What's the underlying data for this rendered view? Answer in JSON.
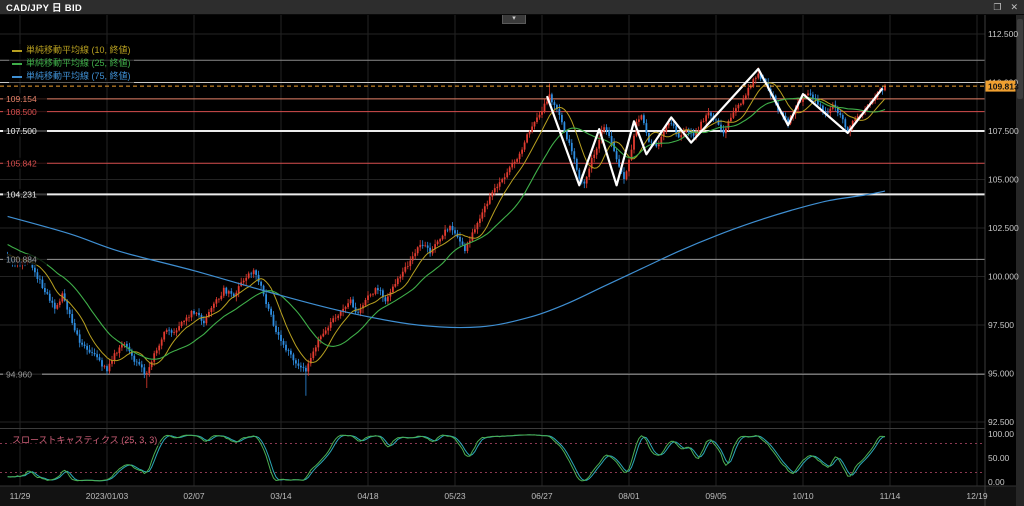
{
  "window": {
    "title": "CAD/JPY 日 BID",
    "restore_icon": "❐",
    "close_icon": "✕",
    "collapse_button": "▾"
  },
  "legend": {
    "items": [
      {
        "label": "単純移動平均線 (10, 終値)",
        "color": "#b8a020"
      },
      {
        "label": "単純移動平均線 (25, 終値)",
        "color": "#3fae49"
      },
      {
        "label": "単純移動平均線 (75, 終値)",
        "color": "#3f8fd2"
      }
    ]
  },
  "stochastic": {
    "label": "スローストキャスティクス (25, 3, 3)",
    "axis": [
      "100.00",
      "50.00",
      "0.00"
    ],
    "overbought": 80,
    "oversold": 20,
    "k_color": "#4caf50",
    "d_color": "#2aa8b8",
    "band_color": "#b84a6a"
  },
  "price_axis": {
    "labels": [
      "112.500",
      "110.000",
      "107.500",
      "105.000",
      "102.500",
      "100.000",
      "97.500",
      "95.000",
      "92.500"
    ],
    "current": {
      "value": "109.813",
      "price": 109.813,
      "bg": "#f0a030"
    }
  },
  "time_axis": {
    "labels": [
      "11/29",
      "2023/01/03",
      "02/07",
      "03/14",
      "04/18",
      "05/23",
      "06/27",
      "08/01",
      "09/05",
      "10/10",
      "11/14",
      "12/19"
    ]
  },
  "levels": [
    {
      "price": 111.15,
      "label": "",
      "color": "#8a8a8a",
      "width": 1
    },
    {
      "price": 110.0,
      "label": "",
      "color": "#c8c8c8",
      "width": 1
    },
    {
      "price": 109.154,
      "label": "109.154",
      "color": "#e8836a",
      "width": 1
    },
    {
      "price": 108.5,
      "label": "108.500",
      "color": "#d84f4f",
      "width": 1
    },
    {
      "price": 107.5,
      "label": "107.500",
      "color": "#ececec",
      "width": 2
    },
    {
      "price": 105.842,
      "label": "105.842",
      "color": "#d84f4f",
      "width": 1
    },
    {
      "price": 104.231,
      "label": "104.231",
      "color": "#ececec",
      "width": 2
    },
    {
      "price": 100.884,
      "label": "100.884",
      "color": "#9a9a9a",
      "width": 1
    },
    {
      "price": 94.96,
      "label": "94.960",
      "color": "#9a9a9a",
      "width": 1
    }
  ],
  "chart_data": {
    "type": "candlestick",
    "symbol": "CAD/JPY",
    "timeframe": "daily",
    "side": "BID",
    "ylim": [
      92.5,
      112.5
    ],
    "x_range_days": 385,
    "last_day": 348,
    "last_close": 109.813,
    "up_color": "#e13b30",
    "down_color": "#2e8de0",
    "prehistory_anchors": [
      [
        -75,
        106.2
      ],
      [
        -60,
        104.8
      ],
      [
        -45,
        103.6
      ],
      [
        -30,
        102.6
      ],
      [
        -15,
        101.4
      ],
      [
        -5,
        100.9
      ]
    ],
    "close_anchors": [
      [
        0,
        100.6
      ],
      [
        3,
        100.9
      ],
      [
        6,
        100.2
      ],
      [
        10,
        99.3
      ],
      [
        14,
        98.3
      ],
      [
        17,
        99.0
      ],
      [
        21,
        97.6
      ],
      [
        24,
        96.6
      ],
      [
        28,
        96.2
      ],
      [
        32,
        95.6
      ],
      [
        35,
        95.1
      ],
      [
        38,
        96.0
      ],
      [
        42,
        96.6
      ],
      [
        45,
        95.9
      ],
      [
        49,
        95.2
      ],
      [
        51,
        94.9
      ],
      [
        55,
        96.3
      ],
      [
        59,
        97.3
      ],
      [
        63,
        97.1
      ],
      [
        66,
        97.8
      ],
      [
        70,
        98.2
      ],
      [
        74,
        97.6
      ],
      [
        78,
        98.6
      ],
      [
        82,
        99.3
      ],
      [
        86,
        99.0
      ],
      [
        90,
        99.9
      ],
      [
        94,
        100.3
      ],
      [
        97,
        99.5
      ],
      [
        100,
        98.3
      ],
      [
        103,
        97.2
      ],
      [
        106,
        96.4
      ],
      [
        109,
        95.9
      ],
      [
        112,
        95.4
      ],
      [
        115,
        95.1
      ],
      [
        118,
        96.2
      ],
      [
        121,
        97.0
      ],
      [
        125,
        97.6
      ],
      [
        129,
        98.2
      ],
      [
        133,
        98.7
      ],
      [
        136,
        98.0
      ],
      [
        140,
        98.9
      ],
      [
        144,
        99.4
      ],
      [
        147,
        98.8
      ],
      [
        151,
        99.6
      ],
      [
        155,
        100.4
      ],
      [
        158,
        101.1
      ],
      [
        162,
        101.7
      ],
      [
        165,
        101.2
      ],
      [
        169,
        102.0
      ],
      [
        173,
        102.6
      ],
      [
        176,
        102.1
      ],
      [
        179,
        101.4
      ],
      [
        182,
        102.2
      ],
      [
        185,
        103.0
      ],
      [
        189,
        104.1
      ],
      [
        192,
        104.7
      ],
      [
        195,
        105.1
      ],
      [
        198,
        105.7
      ],
      [
        201,
        106.4
      ],
      [
        204,
        107.2
      ],
      [
        207,
        107.9
      ],
      [
        210,
        108.6
      ],
      [
        213,
        109.3
      ],
      [
        216,
        108.6
      ],
      [
        219,
        107.6
      ],
      [
        222,
        106.4
      ],
      [
        225,
        105.1
      ],
      [
        227,
        104.8
      ],
      [
        230,
        106.0
      ],
      [
        233,
        107.0
      ],
      [
        235,
        107.8
      ],
      [
        238,
        106.8
      ],
      [
        241,
        105.6
      ],
      [
        243,
        105.0
      ],
      [
        246,
        106.6
      ],
      [
        248,
        107.9
      ],
      [
        250,
        108.3
      ],
      [
        253,
        107.0
      ],
      [
        256,
        106.6
      ],
      [
        259,
        107.5
      ],
      [
        262,
        108.0
      ],
      [
        265,
        107.1
      ],
      [
        268,
        107.6
      ],
      [
        271,
        107.2
      ],
      [
        274,
        107.9
      ],
      [
        277,
        108.4
      ],
      [
        280,
        108.0
      ],
      [
        283,
        107.5
      ],
      [
        286,
        108.1
      ],
      [
        289,
        108.8
      ],
      [
        292,
        109.4
      ],
      [
        295,
        110.1
      ],
      [
        297,
        110.5
      ],
      [
        300,
        109.9
      ],
      [
        303,
        109.2
      ],
      [
        306,
        108.4
      ],
      [
        309,
        107.9
      ],
      [
        312,
        108.7
      ],
      [
        315,
        109.2
      ],
      [
        318,
        109.5
      ],
      [
        321,
        108.9
      ],
      [
        324,
        108.3
      ],
      [
        327,
        108.8
      ],
      [
        330,
        108.2
      ],
      [
        333,
        107.6
      ],
      [
        336,
        108.1
      ],
      [
        339,
        108.6
      ],
      [
        342,
        109.0
      ],
      [
        345,
        109.4
      ],
      [
        348,
        109.81
      ]
    ],
    "wick_overrides": [
      {
        "day": 51,
        "low": 94.25
      },
      {
        "day": 115,
        "low": 93.85
      },
      {
        "day": 213,
        "high": 109.95
      },
      {
        "day": 297,
        "high": 110.78
      }
    ],
    "ma75_points": [
      [
        -5,
        103.1
      ],
      [
        20,
        102.2
      ],
      [
        40,
        101.3
      ],
      [
        70,
        100.3
      ],
      [
        100,
        99.2
      ],
      [
        130,
        98.2
      ],
      [
        160,
        97.5
      ],
      [
        185,
        97.4
      ],
      [
        205,
        97.9
      ],
      [
        220,
        98.6
      ],
      [
        235,
        99.5
      ],
      [
        250,
        100.4
      ],
      [
        265,
        101.3
      ],
      [
        280,
        102.1
      ],
      [
        295,
        102.8
      ],
      [
        310,
        103.4
      ],
      [
        325,
        103.9
      ],
      [
        340,
        104.2
      ],
      [
        348,
        104.4
      ]
    ],
    "zigzag": {
      "color": "#ffffff",
      "points": [
        [
          212,
          109.3
        ],
        [
          225,
          104.7
        ],
        [
          233,
          107.6
        ],
        [
          240,
          104.7
        ],
        [
          247,
          108.0
        ],
        [
          252,
          106.3
        ],
        [
          262,
          108.2
        ],
        [
          270,
          106.9
        ],
        [
          297,
          110.7
        ],
        [
          309,
          107.8
        ],
        [
          315,
          109.4
        ],
        [
          333,
          107.4
        ],
        [
          347,
          109.7
        ]
      ]
    }
  }
}
